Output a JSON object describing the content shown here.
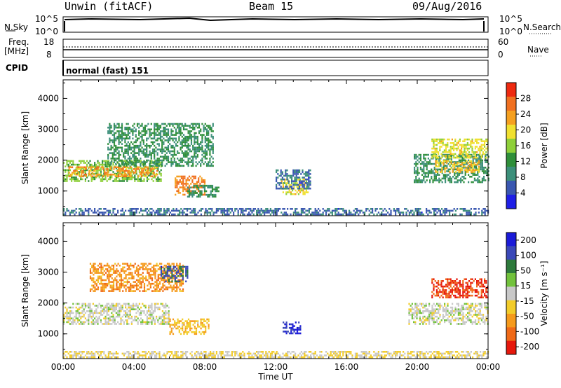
{
  "header": {
    "station": "Unwin (fitACF)",
    "beam": "Beam 15",
    "date": "09/Aug/2016"
  },
  "top_panels": {
    "nsky_label": "N.Sky",
    "nsearch_label": "N.Search",
    "noise_ticks_left": [
      "10^5",
      "10^0"
    ],
    "noise_ticks_right": [
      "10^5",
      "10^0"
    ],
    "freq_label_1": "Freq.",
    "freq_label_2": "[MHz]",
    "freq_ticks_left": [
      "18",
      "8"
    ],
    "nave_ticks_right": [
      "60",
      "0"
    ],
    "nave_label": "Nave",
    "cpid_label": "CPID",
    "cpid_value": "normal (fast) 151"
  },
  "colors": {
    "power": [
      "#1f1fe6",
      "#3a57b0",
      "#3c8f7a",
      "#2f8f3a",
      "#8fd03a",
      "#f0e030",
      "#f5a020",
      "#f07020",
      "#ee2a10"
    ],
    "velocity": [
      "#1b1bd8",
      "#3a48b8",
      "#2e7a3c",
      "#72c23c",
      "#c8c8c8",
      "#f2cc2a",
      "#f59a1c",
      "#f06a18",
      "#e6180c"
    ]
  },
  "chart_data": [
    {
      "type": "heatmap",
      "title": "",
      "xlabel": "Time UT",
      "ylabel": "Slant Range [km]",
      "xlim": [
        0,
        24
      ],
      "ylim": [
        200,
        4600
      ],
      "x_ticks": [
        "00:00",
        "04:00",
        "08:00",
        "12:00",
        "16:00",
        "20:00",
        "00:00"
      ],
      "y_ticks": [
        "1000",
        "2000",
        "3000",
        "4000"
      ],
      "colorbar": {
        "label": "Power [dB]",
        "ticks": [
          "4",
          "8",
          "12",
          "16",
          "20",
          "24",
          "28"
        ],
        "range": [
          0,
          30
        ]
      },
      "regions": [
        {
          "t0": 0.0,
          "t1": 5.5,
          "r0": 1350,
          "r1": 2000,
          "value": 14
        },
        {
          "t0": 0.3,
          "t1": 5.3,
          "r0": 1500,
          "r1": 1800,
          "value": 22
        },
        {
          "t0": 2.5,
          "t1": 8.5,
          "r0": 1800,
          "r1": 3200,
          "value": 10
        },
        {
          "t0": 6.3,
          "t1": 8.0,
          "r0": 900,
          "r1": 1500,
          "value": 24
        },
        {
          "t0": 7.0,
          "t1": 8.8,
          "r0": 800,
          "r1": 1200,
          "value": 10
        },
        {
          "t0": 12.3,
          "t1": 13.8,
          "r0": 900,
          "r1": 1400,
          "value": 18
        },
        {
          "t0": 12.0,
          "t1": 14.0,
          "r0": 1100,
          "r1": 1700,
          "value": 6
        },
        {
          "t0": 19.8,
          "t1": 24.0,
          "r0": 1300,
          "r1": 2200,
          "value": 10
        },
        {
          "t0": 20.8,
          "t1": 24.0,
          "r0": 2100,
          "r1": 2700,
          "value": 18
        },
        {
          "t0": 21.0,
          "t1": 23.5,
          "r0": 1600,
          "r1": 2000,
          "value": 20
        },
        {
          "t0": 0.0,
          "t1": 24.0,
          "r0": 250,
          "r1": 450,
          "value": 6
        }
      ]
    },
    {
      "type": "heatmap",
      "title": "",
      "xlabel": "Time UT",
      "ylabel": "Slant Range [km]",
      "xlim": [
        0,
        24
      ],
      "ylim": [
        200,
        4600
      ],
      "x_ticks": [
        "00:00",
        "04:00",
        "08:00",
        "12:00",
        "16:00",
        "20:00",
        "00:00"
      ],
      "y_ticks": [
        "1000",
        "2000",
        "3000",
        "4000"
      ],
      "colorbar": {
        "label": "Velocity [m s⁻¹]",
        "ticks": [
          "200",
          "100",
          "50",
          "15",
          "-15",
          "-50",
          "-100",
          "-200"
        ],
        "range": [
          -250,
          250
        ]
      },
      "regions": [
        {
          "t0": 0.0,
          "t1": 6.0,
          "r0": 1300,
          "r1": 2000,
          "value": 0
        },
        {
          "t0": 1.5,
          "t1": 6.8,
          "r0": 2400,
          "r1": 3300,
          "value": -120
        },
        {
          "t0": 5.5,
          "t1": 7.0,
          "r0": 2700,
          "r1": 3200,
          "value": 150
        },
        {
          "t0": 6.0,
          "t1": 8.2,
          "r0": 1000,
          "r1": 1500,
          "value": -70
        },
        {
          "t0": 12.4,
          "t1": 13.4,
          "r0": 1000,
          "r1": 1400,
          "value": 200
        },
        {
          "t0": 19.5,
          "t1": 24.0,
          "r0": 1300,
          "r1": 2000,
          "value": 0
        },
        {
          "t0": 20.8,
          "t1": 24.0,
          "r0": 2200,
          "r1": 2800,
          "value": -200
        },
        {
          "t0": 0.0,
          "t1": 24.0,
          "r0": 250,
          "r1": 450,
          "value": -30
        }
      ]
    }
  ]
}
